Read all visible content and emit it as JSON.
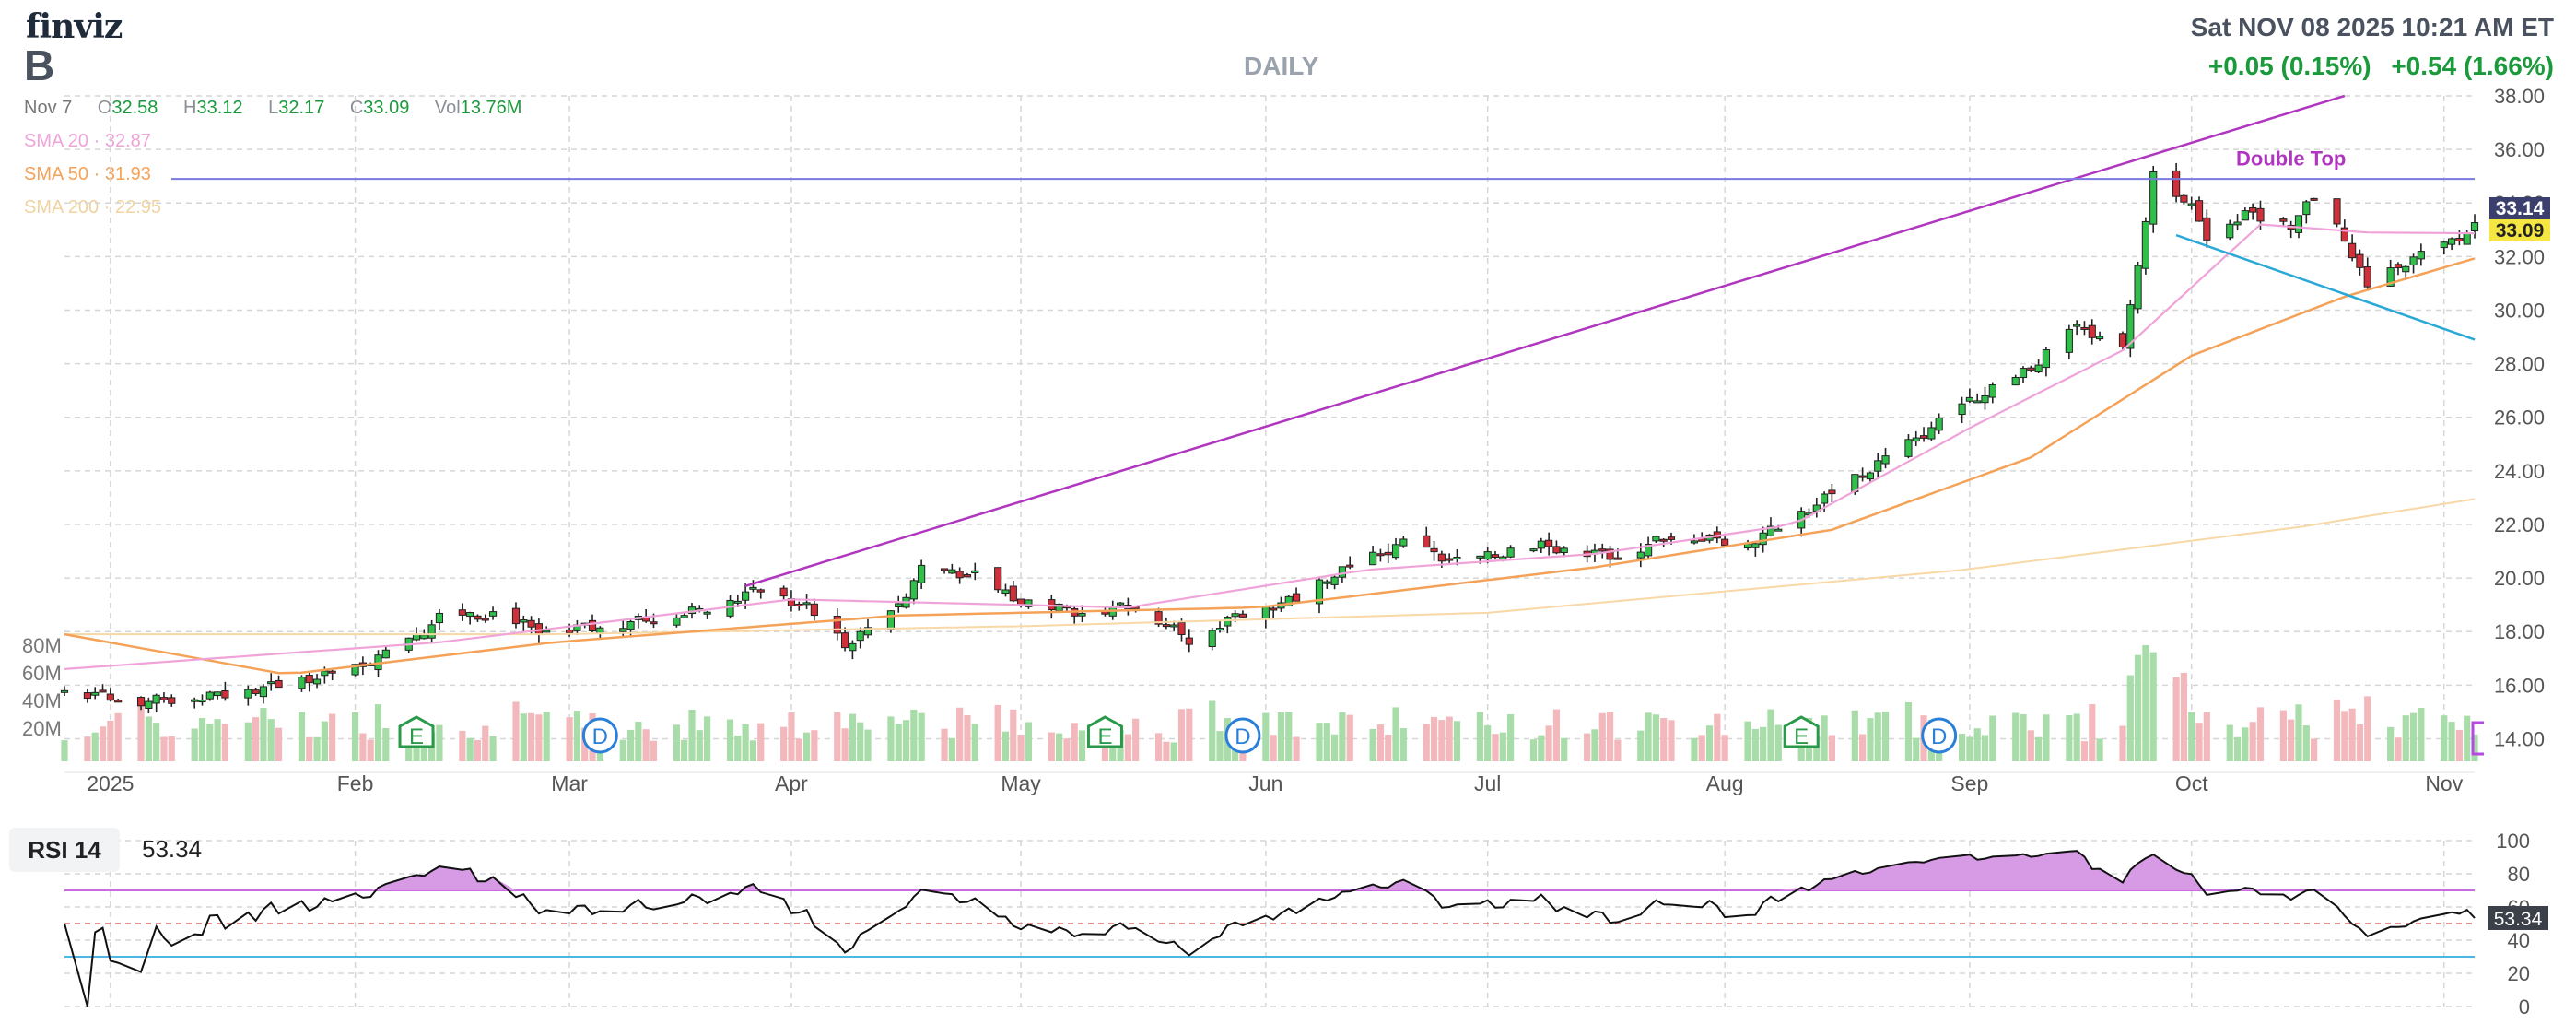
{
  "header": {
    "logo": "finviz",
    "ticker": "B",
    "timeframe": "DAILY",
    "datetime": "Sat NOV 08 2025 10:21 AM ET",
    "change_abs": "+0.05 (0.15%)",
    "change_ext": "+0.54 (1.66%)"
  },
  "ohlc": {
    "date": "Nov 7",
    "o_label": "O",
    "o": "32.58",
    "h_label": "H",
    "h": "33.12",
    "l_label": "L",
    "l": "32.17",
    "c_label": "C",
    "c": "33.09",
    "vol_label": "Vol",
    "vol": "13.76M"
  },
  "sma": [
    {
      "label": "SMA 20",
      "value": "32.87",
      "color": "#f0a3d9"
    },
    {
      "label": "SMA 50",
      "value": "31.93",
      "color": "#f5a259"
    },
    {
      "label": "SMA 200",
      "value": "22.95",
      "color": "#f7d8a6"
    }
  ],
  "rsi": {
    "label": "RSI 14",
    "value": "53.34",
    "badge": "53.34"
  },
  "colors": {
    "up": "#2fbf4a",
    "down": "#d0303a",
    "vol_up": "#a8dca8",
    "vol_down": "#f3b8bc",
    "trend": "#b036c0",
    "resistance": "#7a7ae0",
    "support": "#2aa8d8",
    "rsi_line": "#111111"
  },
  "chart_data": [
    {
      "type": "candlestick",
      "ylabel": "",
      "ylim": [
        13.5,
        38
      ],
      "yticks": [
        14,
        16,
        18,
        20,
        22,
        24,
        26,
        28,
        30,
        32,
        34,
        36,
        38
      ],
      "ytick_labels": [
        "14.00",
        "16.00",
        "18.00",
        "20.00",
        "22.00",
        "24.00",
        "26.00",
        "28.00",
        "30.00",
        "32.00",
        "34.00",
        "36.00",
        "38.00"
      ],
      "x_start": "2024-12-27",
      "x_end": "2025-11-07",
      "x_tick_labels": [
        {
          "label": "2025",
          "date": "2025-01-02"
        },
        {
          "label": "Feb",
          "date": "2025-02-03"
        },
        {
          "label": "Mar",
          "date": "2025-03-03"
        },
        {
          "label": "Apr",
          "date": "2025-04-01"
        },
        {
          "label": "May",
          "date": "2025-05-01"
        },
        {
          "label": "Jun",
          "date": "2025-06-02"
        },
        {
          "label": "Jul",
          "date": "2025-07-01"
        },
        {
          "label": "Aug",
          "date": "2025-08-01"
        },
        {
          "label": "Sep",
          "date": "2025-09-02"
        },
        {
          "label": "Oct",
          "date": "2025-10-01"
        },
        {
          "label": "Nov",
          "date": "2025-11-03"
        }
      ],
      "close_anchors": [
        [
          "2024-12-27",
          15.8
        ],
        [
          "2025-01-06",
          15.4
        ],
        [
          "2025-01-15",
          15.6
        ],
        [
          "2025-01-24",
          16.0
        ],
        [
          "2025-02-03",
          16.6
        ],
        [
          "2025-02-10",
          17.6
        ],
        [
          "2025-02-14",
          18.5
        ],
        [
          "2025-02-21",
          18.6
        ],
        [
          "2025-02-28",
          18.0
        ],
        [
          "2025-03-10",
          18.3
        ],
        [
          "2025-03-20",
          18.8
        ],
        [
          "2025-03-28",
          19.6
        ],
        [
          "2025-04-03",
          18.9
        ],
        [
          "2025-04-08",
          17.5
        ],
        [
          "2025-04-14",
          18.6
        ],
        [
          "2025-04-18",
          20.3
        ],
        [
          "2025-04-25",
          20.1
        ],
        [
          "2025-04-30",
          19.2
        ],
        [
          "2025-05-09",
          18.7
        ],
        [
          "2025-05-16",
          19.0
        ],
        [
          "2025-05-23",
          17.7
        ],
        [
          "2025-05-30",
          18.7
        ],
        [
          "2025-06-06",
          19.2
        ],
        [
          "2025-06-10",
          20.0
        ],
        [
          "2025-06-20",
          21.3
        ],
        [
          "2025-06-27",
          20.6
        ],
        [
          "2025-07-08",
          21.2
        ],
        [
          "2025-07-18",
          20.8
        ],
        [
          "2025-07-25",
          21.6
        ],
        [
          "2025-08-04",
          21.3
        ],
        [
          "2025-08-11",
          22.4
        ],
        [
          "2025-08-18",
          23.7
        ],
        [
          "2025-08-25",
          25.0
        ],
        [
          "2025-09-02",
          26.6
        ],
        [
          "2025-09-10",
          27.8
        ],
        [
          "2025-09-15",
          29.4
        ],
        [
          "2025-09-22",
          28.8
        ],
        [
          "2025-09-24",
          31.5
        ],
        [
          "2025-09-26",
          35.3
        ],
        [
          "2025-10-01",
          33.8
        ],
        [
          "2025-10-03",
          32.8
        ],
        [
          "2025-10-08",
          33.6
        ],
        [
          "2025-10-14",
          33.2
        ],
        [
          "2025-10-17",
          34.2
        ],
        [
          "2025-10-21",
          32.7
        ],
        [
          "2025-10-24",
          30.8
        ],
        [
          "2025-10-29",
          31.8
        ],
        [
          "2025-11-03",
          32.4
        ],
        [
          "2025-11-07",
          33.09
        ]
      ],
      "sma20_anchors": [
        [
          "2024-12-27",
          16.6
        ],
        [
          "2025-02-14",
          17.6
        ],
        [
          "2025-04-01",
          19.2
        ],
        [
          "2025-05-15",
          18.9
        ],
        [
          "2025-06-15",
          20.3
        ],
        [
          "2025-07-15",
          20.9
        ],
        [
          "2025-08-10",
          22.0
        ],
        [
          "2025-09-02",
          25.6
        ],
        [
          "2025-09-22",
          28.5
        ],
        [
          "2025-10-10",
          33.2
        ],
        [
          "2025-10-24",
          32.9
        ],
        [
          "2025-11-07",
          32.87
        ]
      ],
      "sma50_anchors": [
        [
          "2024-12-27",
          17.9
        ],
        [
          "2025-01-25",
          16.4
        ],
        [
          "2025-03-01",
          17.6
        ],
        [
          "2025-04-15",
          18.6
        ],
        [
          "2025-06-01",
          18.9
        ],
        [
          "2025-07-15",
          20.4
        ],
        [
          "2025-08-15",
          21.8
        ],
        [
          "2025-09-10",
          24.5
        ],
        [
          "2025-10-01",
          28.3
        ],
        [
          "2025-10-21",
          30.5
        ],
        [
          "2025-11-07",
          31.93
        ]
      ],
      "sma200_anchors": [
        [
          "2024-12-27",
          17.9
        ],
        [
          "2025-03-01",
          17.9
        ],
        [
          "2025-05-01",
          18.2
        ],
        [
          "2025-07-01",
          18.7
        ],
        [
          "2025-09-01",
          20.3
        ],
        [
          "2025-10-15",
          21.9
        ],
        [
          "2025-11-07",
          22.95
        ]
      ],
      "annotations": [
        {
          "type": "trendline",
          "from": [
            "2025-03-26",
            19.7
          ],
          "to": [
            "2025-10-21",
            38.0
          ]
        },
        {
          "type": "horizontal",
          "y": 34.9
        },
        {
          "type": "trendline",
          "from": [
            "2025-09-29",
            32.8
          ],
          "to": [
            "2025-11-07",
            28.9
          ]
        },
        {
          "type": "text",
          "label": "Double Top",
          "at": [
            "2025-10-14",
            35.4
          ]
        }
      ],
      "price_badges": [
        {
          "value": "33.14",
          "color": "#3b3f6e"
        },
        {
          "value": "33.09",
          "color": "#f5e642"
        }
      ],
      "events": [
        {
          "label": "E",
          "date": "2025-02-11"
        },
        {
          "label": "D",
          "date": "2025-03-07"
        },
        {
          "label": "E",
          "date": "2025-05-12"
        },
        {
          "label": "D",
          "date": "2025-05-30"
        },
        {
          "label": "E",
          "date": "2025-08-11"
        },
        {
          "label": "D",
          "date": "2025-08-29"
        }
      ],
      "volume_ticks": [
        "80M",
        "60M",
        "40M",
        "20M"
      ],
      "volume_ylim": [
        0,
        80
      ]
    },
    {
      "type": "line",
      "title": "RSI 14",
      "ylim": [
        0,
        100
      ],
      "yticks": [
        0,
        20,
        40,
        60,
        80,
        100
      ],
      "ytick_labels": [
        "0",
        "20",
        "40",
        "60",
        "80",
        "100"
      ],
      "bands": [
        30,
        70
      ],
      "mid": 50,
      "last": 53.34
    }
  ]
}
